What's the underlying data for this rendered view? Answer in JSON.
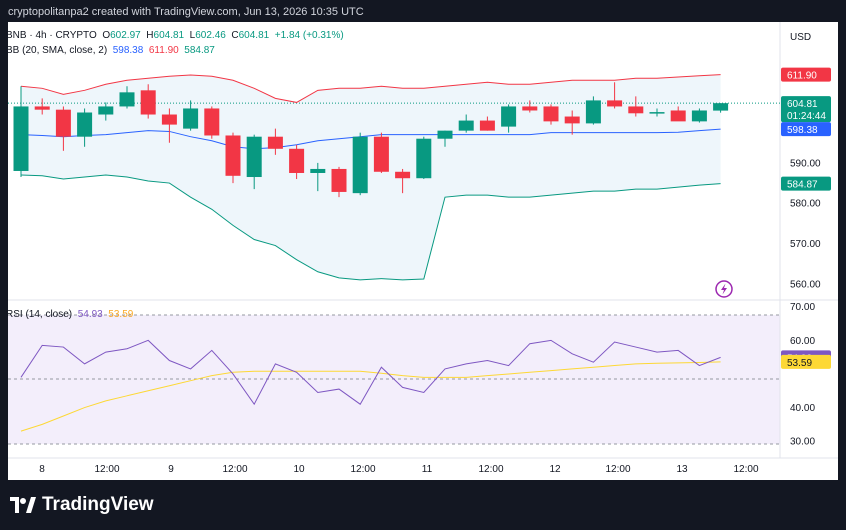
{
  "header": {
    "credit": "cryptopolitanpa2 created with TradingView.com, Jun 13, 2026 10:35 UTC"
  },
  "legend": {
    "symbol": "BNB · 4h · CRYPTO",
    "open_label": "O",
    "open": "602.97",
    "high_label": "H",
    "high": "604.81",
    "low_label": "L",
    "low": "602.46",
    "close_label": "C",
    "close": "604.81",
    "change": "+1.84 (+0.31%)",
    "bb_title": "BB (20, SMA, close, 2)",
    "bb_basis": "598.38",
    "bb_upper": "611.90",
    "bb_lower": "584.87",
    "rsi_title": "RSI (14, close)",
    "rsi_value": "54.93",
    "rsi_ma": "53.59"
  },
  "price_axis": {
    "currency": "USD",
    "ticks": [
      "590.00",
      "580.00",
      "570.00",
      "560.00"
    ],
    "badges": {
      "upper": "611.90",
      "price": "604.81",
      "countdown": "01:24:44",
      "basis": "598.38",
      "lower": "584.87"
    }
  },
  "rsi_axis": {
    "ticks": [
      "70.00",
      "60.00",
      "40.00",
      "30.00"
    ],
    "badges": {
      "rsi": "54.93",
      "ma": "53.59"
    }
  },
  "time_axis": [
    "8",
    "12:00",
    "9",
    "12:00",
    "10",
    "12:00",
    "11",
    "12:00",
    "12",
    "12:00",
    "13",
    "12:00"
  ],
  "colors": {
    "up": "#089981",
    "down": "#f23645",
    "bb_upper": "#f23645",
    "bb_basis": "#2962ff",
    "bb_lower": "#089981",
    "bb_fill": "#eef6fb",
    "rsi": "#7e57c2",
    "rsi_ma": "#fdd835",
    "rsi_fill": "#f3eefb",
    "lightning": "#9c27b0"
  },
  "footer": {
    "brand": "TradingView"
  },
  "chart_data": {
    "type": "candlestick",
    "price_ylim": [
      556,
      618
    ],
    "rsi_ylim": [
      25,
      72
    ],
    "time_ticks": [
      "8",
      "12:00",
      "9",
      "12:00",
      "10",
      "12:00",
      "11",
      "12:00",
      "12",
      "12:00",
      "13",
      "12:00"
    ],
    "candles": [
      {
        "o": 588.0,
        "h": 609.0,
        "l": 586.5,
        "c": 604.0
      },
      {
        "o": 604.0,
        "h": 606.0,
        "l": 602.0,
        "c": 603.2
      },
      {
        "o": 603.2,
        "h": 604.0,
        "l": 593.0,
        "c": 596.5
      },
      {
        "o": 596.5,
        "h": 603.5,
        "l": 594.0,
        "c": 602.5
      },
      {
        "o": 602.0,
        "h": 605.0,
        "l": 600.5,
        "c": 604.0
      },
      {
        "o": 604.0,
        "h": 609.0,
        "l": 603.5,
        "c": 607.5
      },
      {
        "o": 608.0,
        "h": 609.5,
        "l": 601.0,
        "c": 602.0
      },
      {
        "o": 602.0,
        "h": 603.5,
        "l": 595.0,
        "c": 599.5
      },
      {
        "o": 598.5,
        "h": 605.5,
        "l": 598.0,
        "c": 603.5
      },
      {
        "o": 603.5,
        "h": 604.0,
        "l": 596.0,
        "c": 596.8
      },
      {
        "o": 596.8,
        "h": 597.5,
        "l": 585.0,
        "c": 586.8
      },
      {
        "o": 586.5,
        "h": 597.0,
        "l": 583.5,
        "c": 596.5
      },
      {
        "o": 596.5,
        "h": 598.5,
        "l": 592.0,
        "c": 593.5
      },
      {
        "o": 593.5,
        "h": 594.5,
        "l": 586.0,
        "c": 587.5
      },
      {
        "o": 587.5,
        "h": 590.0,
        "l": 583.0,
        "c": 588.5
      },
      {
        "o": 588.5,
        "h": 589.0,
        "l": 581.5,
        "c": 582.8
      },
      {
        "o": 582.5,
        "h": 597.5,
        "l": 582.0,
        "c": 596.5
      },
      {
        "o": 596.5,
        "h": 597.5,
        "l": 587.5,
        "c": 587.8
      },
      {
        "o": 587.8,
        "h": 588.5,
        "l": 582.5,
        "c": 586.2
      },
      {
        "o": 586.2,
        "h": 596.5,
        "l": 586.0,
        "c": 596.0
      },
      {
        "o": 596.0,
        "h": 598.0,
        "l": 594.0,
        "c": 598.0
      },
      {
        "o": 598.0,
        "h": 602.0,
        "l": 597.5,
        "c": 600.5
      },
      {
        "o": 600.5,
        "h": 601.5,
        "l": 598.0,
        "c": 598.0
      },
      {
        "o": 599.0,
        "h": 604.5,
        "l": 597.5,
        "c": 604.0
      },
      {
        "o": 604.0,
        "h": 605.5,
        "l": 602.5,
        "c": 603.0
      },
      {
        "o": 604.0,
        "h": 604.5,
        "l": 599.5,
        "c": 600.3
      },
      {
        "o": 601.5,
        "h": 603.0,
        "l": 597.0,
        "c": 599.8
      },
      {
        "o": 599.8,
        "h": 606.5,
        "l": 599.5,
        "c": 605.5
      },
      {
        "o": 605.5,
        "h": 610.0,
        "l": 603.5,
        "c": 604.0
      },
      {
        "o": 604.0,
        "h": 606.5,
        "l": 601.5,
        "c": 602.3
      },
      {
        "o": 602.3,
        "h": 603.5,
        "l": 601.5,
        "c": 602.6
      },
      {
        "o": 603.0,
        "h": 604.0,
        "l": 600.5,
        "c": 600.3
      },
      {
        "o": 600.3,
        "h": 603.5,
        "l": 600.0,
        "c": 603.0
      },
      {
        "o": 602.97,
        "h": 604.81,
        "l": 602.46,
        "c": 604.81
      }
    ],
    "bb_upper": [
      609.0,
      608.5,
      607.0,
      608.0,
      609.5,
      610.5,
      611.0,
      611.5,
      611.8,
      611.5,
      610.5,
      608.5,
      606.0,
      605.0,
      608.0,
      608.5,
      608.5,
      609.0,
      608.5,
      608.5,
      609.0,
      609.5,
      610.0,
      609.5,
      609.5,
      610.0,
      610.5,
      610.5,
      610.5,
      611.0,
      611.0,
      611.3,
      611.6,
      611.9
    ],
    "bb_basis": [
      597.0,
      596.8,
      596.5,
      596.8,
      597.0,
      597.5,
      598.0,
      597.8,
      596.5,
      595.5,
      594.0,
      593.5,
      593.8,
      594.5,
      595.5,
      596.0,
      596.5,
      597.0,
      597.0,
      597.0,
      597.0,
      597.0,
      597.0,
      597.0,
      597.0,
      597.5,
      597.5,
      597.5,
      597.5,
      597.5,
      597.5,
      597.6,
      598.0,
      598.38
    ],
    "bb_lower": [
      587.0,
      586.8,
      586.0,
      586.5,
      587.0,
      586.5,
      585.5,
      585.0,
      581.5,
      578.5,
      574.5,
      571.0,
      569.5,
      566.0,
      563.0,
      561.5,
      561.0,
      561.3,
      561.0,
      561.2,
      581.5,
      582.0,
      582.0,
      581.5,
      581.5,
      582.0,
      582.5,
      583.0,
      583.0,
      583.5,
      583.5,
      584.0,
      584.5,
      584.87
    ],
    "rsi": [
      49.0,
      58.5,
      58.0,
      53.0,
      56.5,
      57.5,
      60.0,
      54.0,
      51.5,
      57.0,
      50.0,
      41.0,
      53.0,
      50.5,
      44.5,
      45.5,
      41.0,
      52.0,
      46.0,
      44.5,
      51.5,
      53.0,
      54.0,
      52.5,
      59.0,
      60.0,
      56.0,
      53.5,
      59.5,
      58.0,
      56.5,
      57.0,
      52.5,
      54.93
    ],
    "rsi_ma": [
      33.0,
      35.0,
      37.5,
      40.0,
      42.0,
      43.5,
      45.0,
      46.5,
      48.0,
      49.5,
      50.5,
      50.8,
      50.8,
      50.8,
      50.8,
      50.8,
      50.8,
      50.2,
      49.5,
      49.0,
      49.0,
      49.0,
      49.5,
      50.0,
      50.5,
      51.0,
      51.5,
      52.0,
      52.5,
      53.0,
      53.2,
      53.3,
      53.4,
      53.59
    ]
  }
}
